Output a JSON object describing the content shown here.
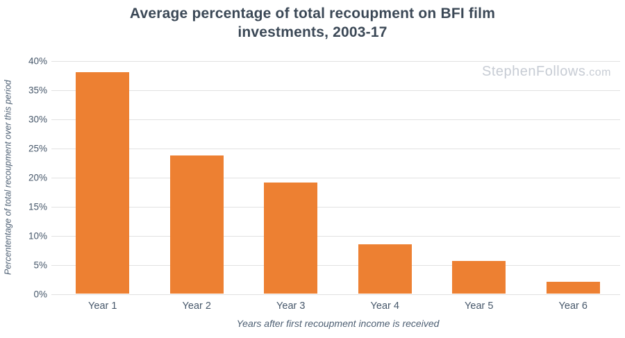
{
  "title": {
    "line1": "Average percentage of total recoupment on BFI film",
    "line2": "investments, 2003-17"
  },
  "watermark": {
    "name": "StephenFollows",
    "suffix": ".com"
  },
  "chart_data": {
    "type": "bar",
    "title": "Average percentage of total recoupment on BFI film investments, 2003-17",
    "categories": [
      "Year 1",
      "Year 2",
      "Year 3",
      "Year 4",
      "Year 5",
      "Year 6"
    ],
    "values": [
      38,
      23.7,
      19,
      8.5,
      5.6,
      2
    ],
    "xlabel": "Years after first recoupment income is received",
    "ylabel": "Percententage of total recoupment over this period",
    "ylim": [
      0,
      40
    ],
    "yticks": [
      0,
      5,
      10,
      15,
      20,
      25,
      30,
      35,
      40
    ],
    "ytick_suffix": "%",
    "grid": true,
    "legend": false,
    "bar_color": "#ED8032"
  },
  "colors": {
    "bar": "#ED8032",
    "title": "#3B4856",
    "tick_label": "#46576A",
    "axis_title": "#4C5E72",
    "gridline": "#E1E1E1",
    "watermark": "#C7CCD4",
    "background": "#FFFFFF"
  }
}
